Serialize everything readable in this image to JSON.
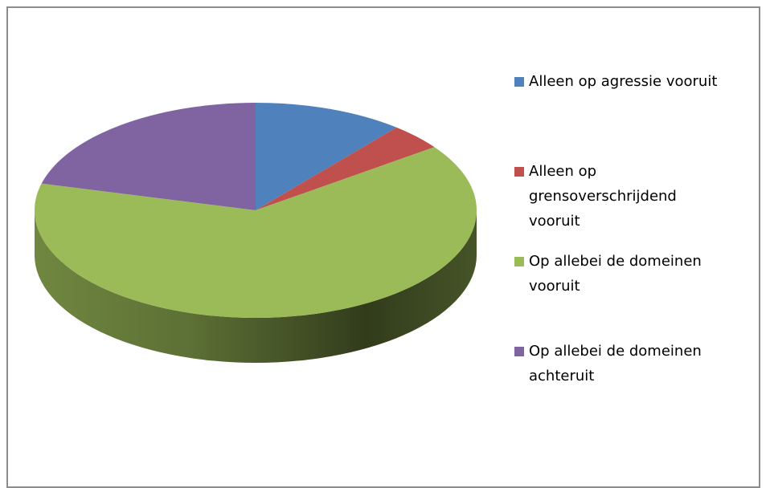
{
  "chart_data": {
    "type": "pie3d",
    "categories": [
      "Alleen op agressie vooruit",
      "Alleen op grensoverschrijdend vooruit",
      "Op allebei de domeinen vooruit",
      "Op allebei de domeinen achteruit"
    ],
    "values": [
      11,
      4,
      64,
      21
    ],
    "colors": [
      "#4f81bd",
      "#c0504d",
      "#9bbb59",
      "#8064a2"
    ],
    "legend": "right"
  }
}
